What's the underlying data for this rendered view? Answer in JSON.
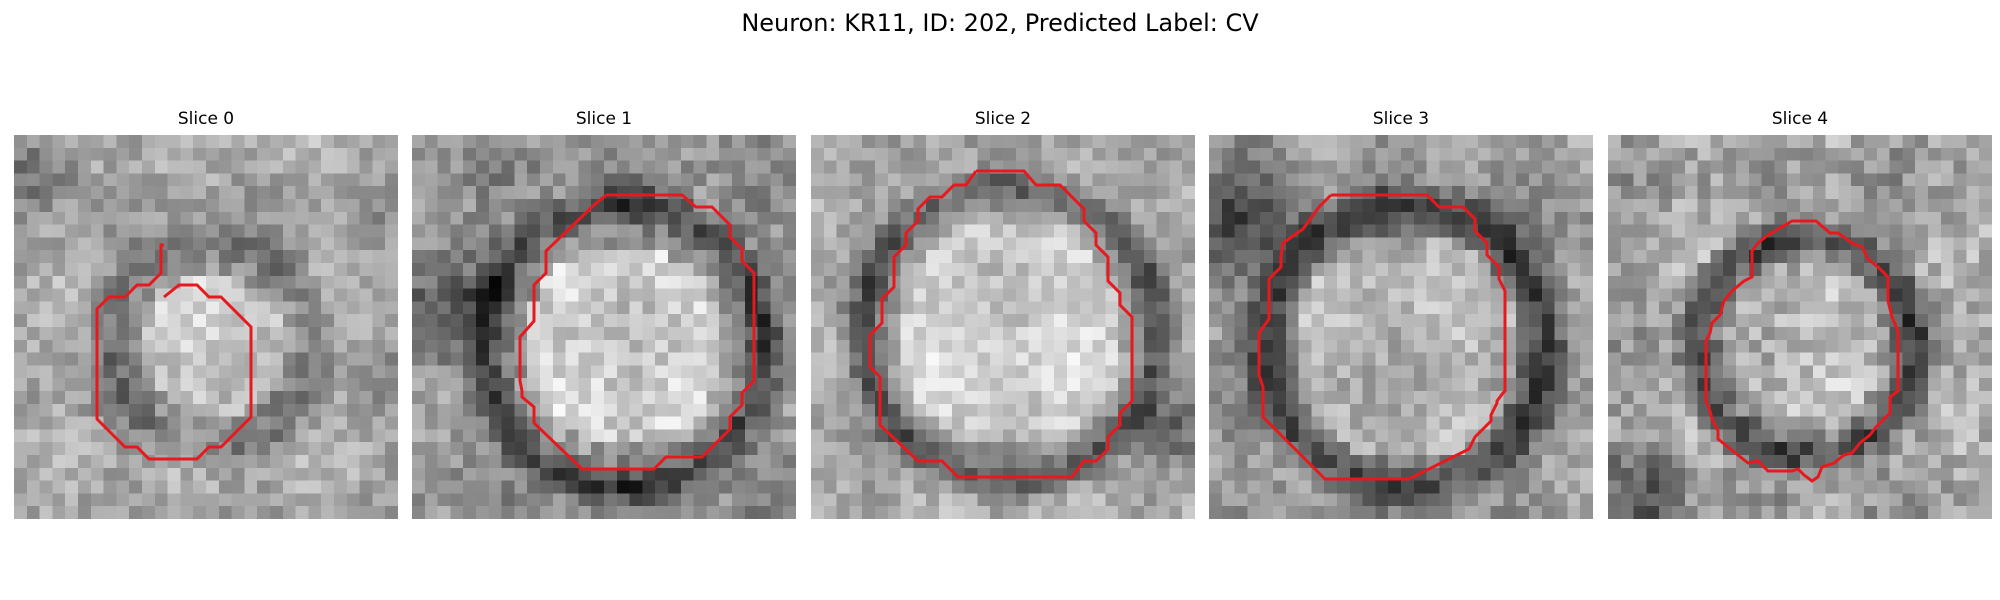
{
  "figure": {
    "title": "Neuron: KR11, ID: 202, Predicted Label: CV"
  },
  "panels": [
    {
      "title": "Slice 0"
    },
    {
      "title": "Slice 1"
    },
    {
      "title": "Slice 2"
    },
    {
      "title": "Slice 3"
    },
    {
      "title": "Slice 4"
    }
  ],
  "style": {
    "contour_color": "#e8191e"
  }
}
